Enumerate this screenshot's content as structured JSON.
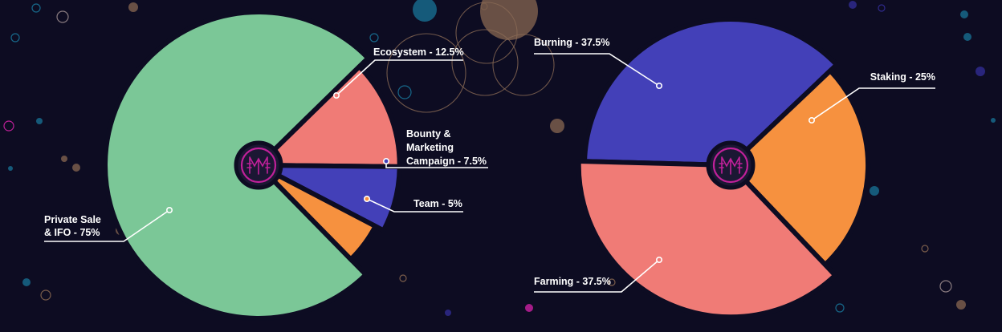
{
  "chart_data": [
    {
      "type": "pie",
      "title": "",
      "slices": [
        {
          "label": "Private Sale & IFO - 75%",
          "label_lines": [
            "Private Sale",
            "& IFO - 75%"
          ],
          "value": 75,
          "color": "#7bc797"
        },
        {
          "label": "Ecosystem - 12.5%",
          "label_lines": [
            "Ecosystem - 12.5%"
          ],
          "value": 12.5,
          "color": "#f07b76"
        },
        {
          "label": "Bounty & Marketing Campaign - 7.5%",
          "label_lines": [
            "Bounty &",
            "Marketing",
            "Campaign - 7.5%"
          ],
          "value": 7.5,
          "color": "#4340b8"
        },
        {
          "label": "Team - 5%",
          "label_lines": [
            "Team - 5%"
          ],
          "value": 5,
          "color": "#f6913f"
        }
      ]
    },
    {
      "type": "pie",
      "title": "",
      "slices": [
        {
          "label": "Burning - 37.5%",
          "label_lines": [
            "Burning - 37.5%"
          ],
          "value": 37.5,
          "color": "#4340b8"
        },
        {
          "label": "Staking - 25%",
          "label_lines": [
            "Staking - 25%"
          ],
          "value": 25,
          "color": "#f6913f"
        },
        {
          "label": "Farming - 37.5%",
          "label_lines": [
            "Farming - 37.5%"
          ],
          "value": 37.5,
          "color": "#f07b76"
        }
      ]
    }
  ],
  "theme": {
    "background": "#0d0c22",
    "logo_ring": "#c0209a",
    "logo_fill": "#1b1733"
  },
  "logo": {
    "icon": "cat-mask-logo-icon"
  }
}
